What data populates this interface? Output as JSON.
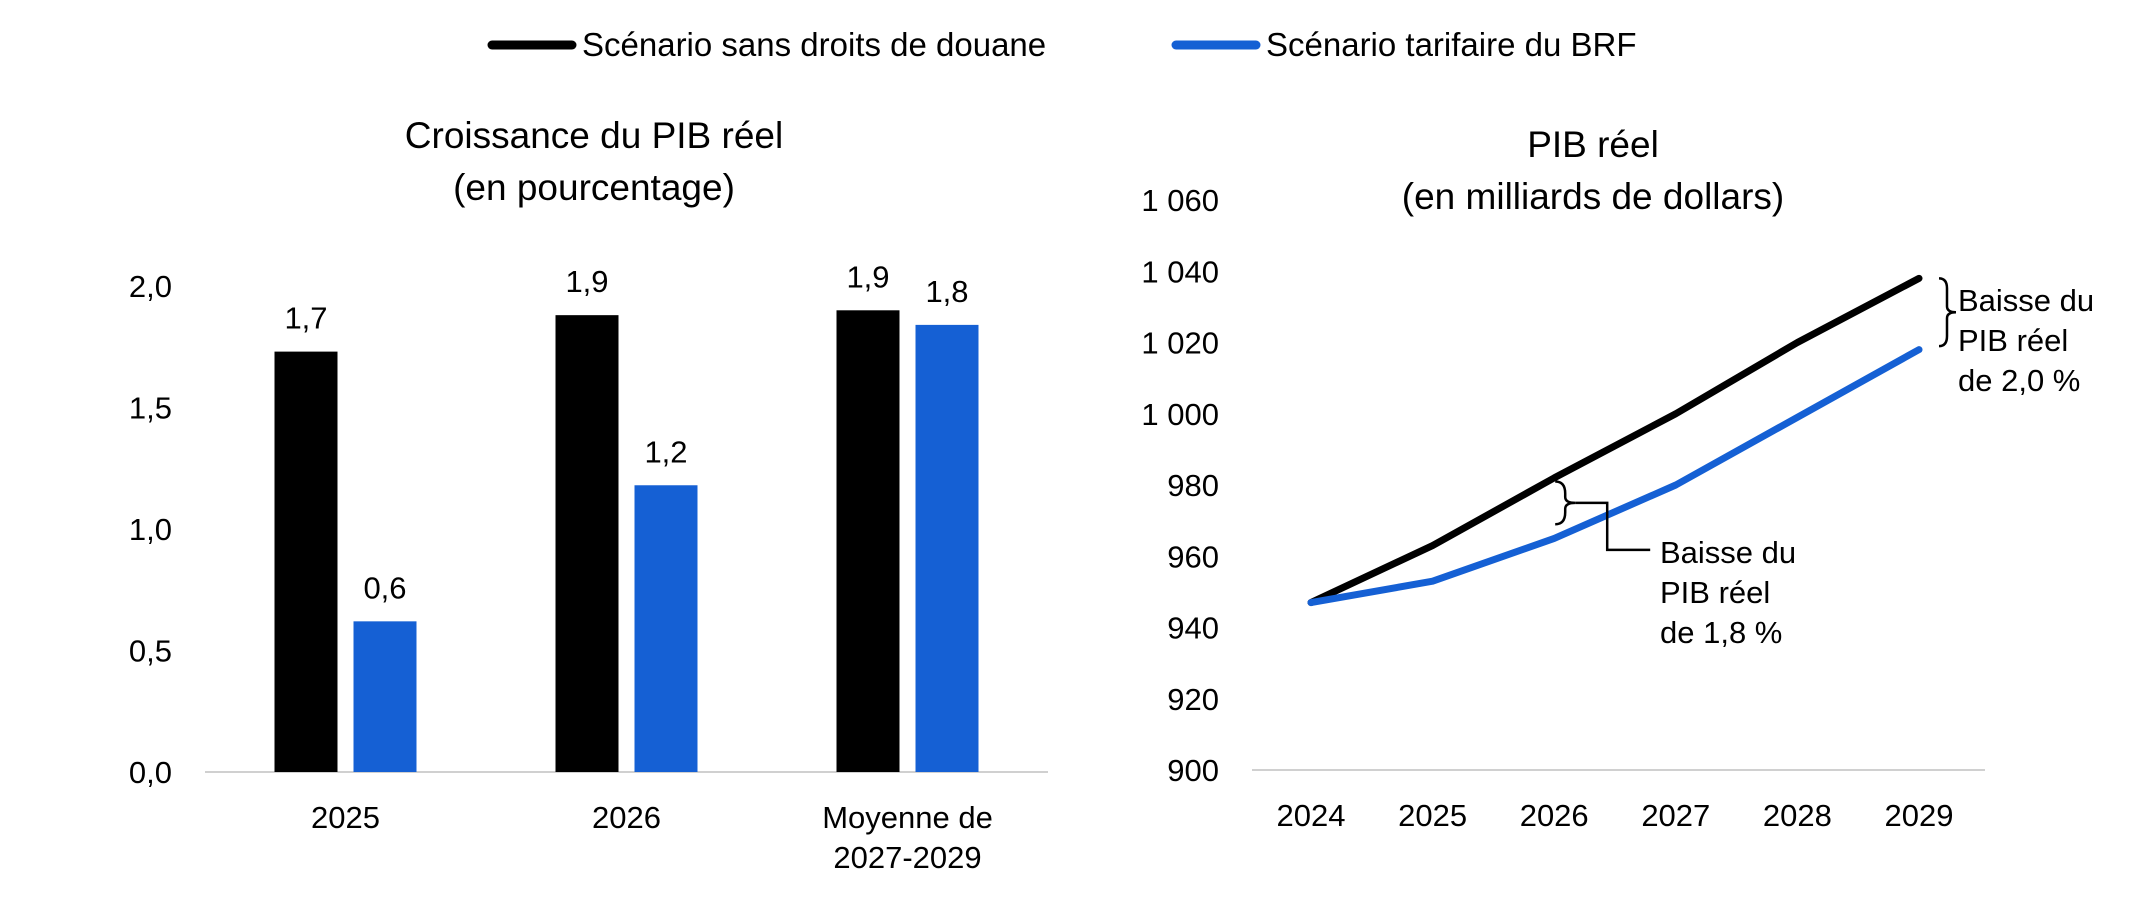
{
  "legend": [
    {
      "label": "Scénario sans droits de douane",
      "color": "#000000"
    },
    {
      "label": "Scénario tarifaire du BRF",
      "color": "#1560d4"
    }
  ],
  "chart_data": [
    {
      "type": "bar",
      "title_lines": [
        "Croissance du PIB réel",
        "(en pourcentage)"
      ],
      "category_lines": [
        [
          "2025"
        ],
        [
          "2026"
        ],
        [
          "Moyenne de",
          "2027-2029"
        ]
      ],
      "series": [
        {
          "name": "Scénario sans droits de douane",
          "color": "#000000",
          "values": [
            1.73,
            1.88,
            1.9
          ],
          "labels": [
            "1,7",
            "1,9",
            "1,9"
          ]
        },
        {
          "name": "Scénario tarifaire du BRF",
          "color": "#1560d4",
          "values": [
            0.62,
            1.18,
            1.84
          ],
          "labels": [
            "0,6",
            "1,2",
            "1,8"
          ]
        }
      ],
      "ylim": [
        0,
        2
      ],
      "yticks": [
        0,
        0.5,
        1,
        1.5,
        2
      ],
      "ytick_labels": [
        "0,0",
        "0,5",
        "1,0",
        "1,5",
        "2,0"
      ],
      "grid": false
    },
    {
      "type": "line",
      "title_lines": [
        "PIB réel",
        "(en milliards de dollars)"
      ],
      "x": [
        "2024",
        "2025",
        "2026",
        "2027",
        "2028",
        "2029"
      ],
      "series": [
        {
          "name": "Scénario sans droits de douane",
          "color": "#000000",
          "values": [
            947,
            963,
            982,
            1000,
            1020,
            1038
          ]
        },
        {
          "name": "Scénario tarifaire du BRF",
          "color": "#1560d4",
          "values": [
            947,
            953,
            965,
            980,
            999,
            1018
          ]
        }
      ],
      "ylim": [
        900,
        1060
      ],
      "yticks": [
        900,
        920,
        940,
        960,
        980,
        1000,
        1020,
        1040,
        1060
      ],
      "ytick_labels": [
        "900",
        "920",
        "940",
        "960",
        "980",
        "1 000",
        "1 020",
        "1 040",
        "1 060"
      ],
      "grid": false,
      "annotations": [
        {
          "x": "2026",
          "from": 981,
          "to": 969,
          "lines": [
            "Baisse du",
            "PIB réel",
            "de 1,8 %"
          ]
        },
        {
          "x": "2029",
          "from": 1038,
          "to": 1019,
          "lines": [
            "Baisse du",
            "PIB réel",
            "de 2,0 %"
          ]
        }
      ]
    }
  ]
}
